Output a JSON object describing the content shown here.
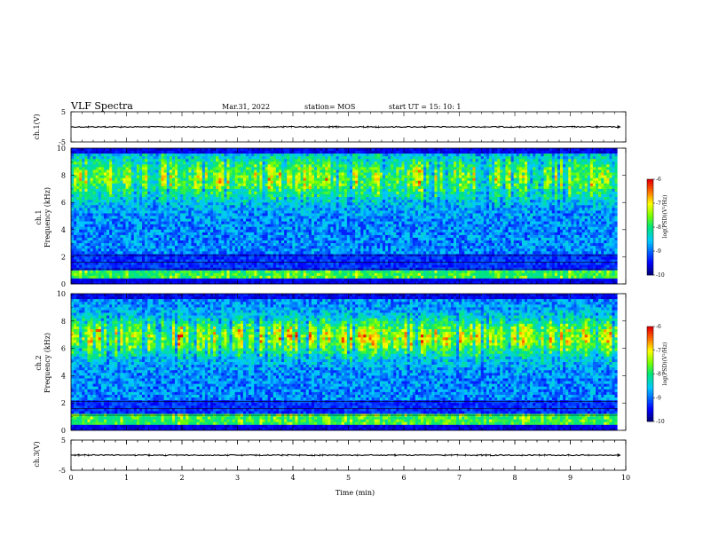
{
  "header": {
    "title": "VLF Spectra",
    "date": "Mar.31, 2022",
    "station": "station= MOS",
    "start": "start  UT =   15: 10: 1"
  },
  "chart_data": [
    {
      "type": "line",
      "panel": "ch1-waveform",
      "ylabel": "ch.1(V)",
      "ylim": [
        -5,
        5
      ],
      "yticks": [
        "5",
        "-5"
      ],
      "xlim": [
        0,
        10
      ],
      "series": [
        {
          "values_description_free": true,
          "level": 0
        }
      ]
    },
    {
      "type": "heatmap",
      "panel": "ch1-spectrogram",
      "ylabel": "ch.1\nFrequency (kHz)",
      "ylabel_line1": "ch.1",
      "ylabel_line2": "Frequency (kHz)",
      "ylim": [
        0,
        10
      ],
      "yticks": [
        "0",
        "2",
        "4",
        "6",
        "8",
        "10"
      ],
      "xlim": [
        0,
        9.85
      ],
      "colorbar": {
        "label": "log(PSD)(V²/Hz)",
        "range": [
          -10,
          -6
        ],
        "ticks": [
          "-6",
          "-7",
          "-8",
          "-9",
          "-10"
        ]
      }
    },
    {
      "type": "heatmap",
      "panel": "ch2-spectrogram",
      "ylabel_line1": "ch.2",
      "ylabel_line2": "Frequency (kHz)",
      "ylim": [
        0,
        10
      ],
      "yticks": [
        "0",
        "2",
        "4",
        "6",
        "8",
        "10"
      ],
      "xlim": [
        0,
        9.85
      ],
      "colorbar": {
        "label": "log(PSD)(V²/Hz)",
        "range": [
          -10,
          -6
        ],
        "ticks": [
          "-6",
          "-7",
          "-8",
          "-9",
          "-10"
        ]
      }
    },
    {
      "type": "line",
      "panel": "ch3-waveform",
      "ylabel": "ch.3(V)",
      "ylim": [
        -5,
        5
      ],
      "yticks": [
        "5",
        "-5"
      ],
      "xlim": [
        0,
        10
      ]
    }
  ],
  "xaxis": {
    "label": "Time (min)",
    "ticks": [
      "0",
      "1",
      "2",
      "3",
      "4",
      "5",
      "6",
      "7",
      "8",
      "9",
      "10"
    ]
  }
}
